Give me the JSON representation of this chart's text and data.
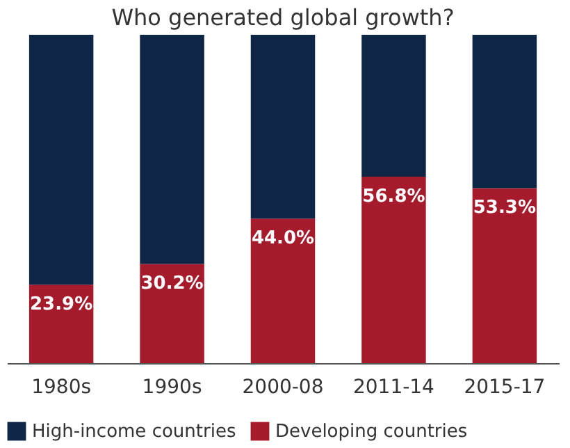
{
  "chart_data": {
    "type": "bar",
    "title": "Who generated global growth?",
    "stacked": true,
    "legend": "bottom",
    "grid": false,
    "categories": [
      "1980s",
      "1990s",
      "2000-08",
      "2011-14",
      "2015-17"
    ],
    "series": [
      {
        "name": "Developing countries",
        "color": "#a51b2b",
        "values": [
          23.9,
          30.2,
          44.0,
          56.8,
          53.3
        ],
        "value_labels": [
          "23.9%",
          "30.2%",
          "44.0%",
          "56.8%",
          "53.3%"
        ]
      },
      {
        "name": "High-income countries",
        "color": "#0f2545",
        "values": [
          76.1,
          69.8,
          56.0,
          43.2,
          46.7
        ]
      }
    ]
  }
}
